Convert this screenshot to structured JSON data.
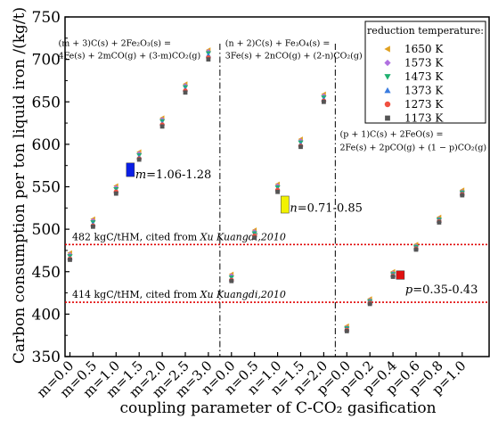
{
  "chart_data": {
    "type": "scatter",
    "title": "",
    "xlabel": "coupling parameter of C-CO₂ gasification",
    "ylabel": "Carbon consumption per ton liquid iron /(kg/t)",
    "ylim": [
      350,
      750
    ],
    "yticks": [
      350,
      400,
      450,
      500,
      550,
      600,
      650,
      700,
      750
    ],
    "categories": [
      "m=0.0",
      "m=0.5",
      "m=1.0",
      "m=1.5",
      "m=2.0",
      "m=2.5",
      "m=3.0",
      "n=0.0",
      "n=0.5",
      "n=1.0",
      "n=1.5",
      "n=2.0",
      "p=0.0",
      "p=0.2",
      "p=0.4",
      "p=0.6",
      "p=0.8",
      "p=1.0"
    ],
    "legend": {
      "title": "reduction temperature:",
      "placement": "top-right",
      "entries": [
        {
          "label": "1650 K",
          "marker": "triangle-left",
          "color": "#e0a020"
        },
        {
          "label": "1573 K",
          "marker": "diamond",
          "color": "#b070e0"
        },
        {
          "label": "1473 K",
          "marker": "triangle-down",
          "color": "#20b070"
        },
        {
          "label": "1373 K",
          "marker": "triangle-up",
          "color": "#3a7ce0"
        },
        {
          "label": "1273 K",
          "marker": "circle",
          "color": "#f05040"
        },
        {
          "label": "1173 K",
          "marker": "square",
          "color": "#555555"
        }
      ]
    },
    "series": [
      {
        "name": "1650 K",
        "values": [
          472,
          512,
          551,
          591,
          631,
          671,
          711,
          447,
          499,
          553,
          606,
          659,
          386,
          418,
          450,
          482,
          514,
          546
        ]
      },
      {
        "name": "1573 K",
        "values": [
          470,
          510,
          549,
          589,
          629,
          669,
          709,
          445,
          497,
          551,
          604,
          657,
          384,
          416,
          448,
          480,
          512,
          544
        ]
      },
      {
        "name": "1473 K",
        "values": [
          468,
          508,
          547,
          587,
          627,
          667,
          707,
          443,
          495,
          549,
          602,
          655,
          383,
          415,
          447,
          479,
          511,
          543
        ]
      },
      {
        "name": "1373 K",
        "values": [
          466,
          506,
          545,
          585,
          625,
          665,
          705,
          441,
          493,
          547,
          600,
          653,
          382,
          414,
          446,
          478,
          510,
          542
        ]
      },
      {
        "name": "1273 K",
        "values": [
          465,
          504,
          544,
          583,
          623,
          663,
          702,
          440,
          492,
          546,
          598,
          651,
          381,
          413,
          445,
          477,
          509,
          541
        ]
      },
      {
        "name": "1173 K",
        "values": [
          464,
          503,
          542,
          582,
          621,
          661,
          700,
          439,
          490,
          544,
          597,
          650,
          380,
          412,
          444,
          476,
          508,
          540
        ]
      }
    ],
    "reference_lines": [
      {
        "value": 482,
        "label": "482 kgC/tHM, cited from ",
        "label_italic": "Xu Kuangdi,2010",
        "color": "#e00000"
      },
      {
        "value": 414,
        "label": "414 kgC/tHM, cited from ",
        "label_italic": "Xu Kuangdi,2010",
        "color": "#e00000"
      }
    ],
    "dividers_after_index": [
      6,
      11
    ],
    "highlight_boxes": [
      {
        "x_index": 2.6,
        "y_low": 562,
        "y_high": 578,
        "color": "#0a1ee6",
        "label_var": "m",
        "label_range": "=1.06-1.28",
        "label_y": 565
      },
      {
        "x_index": 9.3,
        "y_low": 519,
        "y_high": 539,
        "color": "#f2f200",
        "label_var": "n",
        "label_range": "=0.71-0.85",
        "label_y": 526
      },
      {
        "x_index": 14.3,
        "y_low": 441,
        "y_high": 451,
        "color": "#e01010",
        "label_var": "p",
        "label_range": "=0.35-0.43",
        "label_y": 430
      }
    ],
    "equations": [
      {
        "x_index": -0.5,
        "y1": 716,
        "y2": 701,
        "line1": "(m + 3)C(s) + 2Fe₂O₃(s) =",
        "line2": "4Fe(s) + 2mCO(g) + (3-m)CO₂(g)"
      },
      {
        "x_index": 6.73,
        "y1": 716,
        "y2": 701,
        "line1": "(n + 2)C(s) + Fe₃O₄(s) =",
        "line2": "3Fe(s) + 2nCO(g) + (2-n)CO₂(g)"
      },
      {
        "x_index": 11.7,
        "y1": 609,
        "y2": 593,
        "line1": "(p + 1)C(s) + 2FeO(s) =",
        "line2": "2Fe(s) + 2pCO(g) + (1 − p)CO₂(g)"
      }
    ]
  }
}
